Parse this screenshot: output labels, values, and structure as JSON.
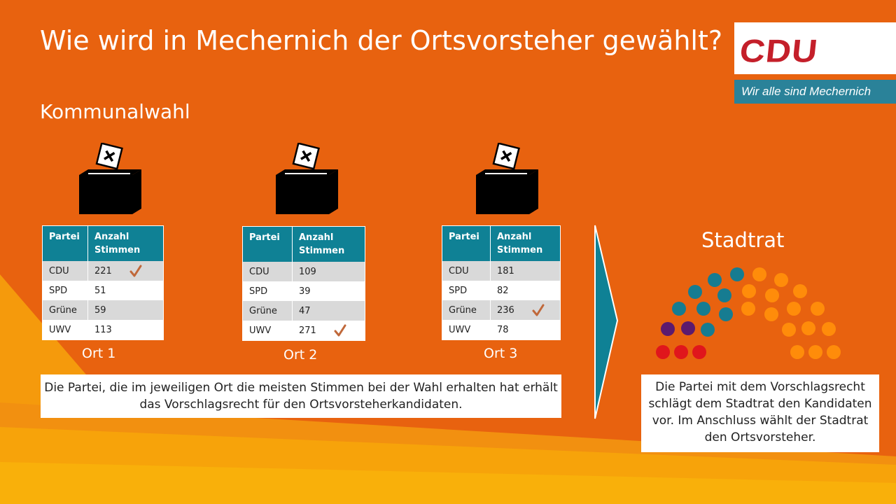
{
  "slide": {
    "title": "Wie wird in Mechernich der Ortsvorsteher gewählt?",
    "subtitle": "Kommunalwahl"
  },
  "logo": {
    "brand": "CDU",
    "tagline": "Wir alle sind Mechernich",
    "colors": {
      "brand": "#c41f2a",
      "tagline_bg": "#2a8299"
    }
  },
  "tables": [
    {
      "place": "Ort 1",
      "headers": [
        "Partei",
        "Anzahl Stimmen"
      ],
      "rows": [
        {
          "party": "CDU",
          "votes": "221"
        },
        {
          "party": "SPD",
          "votes": "51"
        },
        {
          "party": "Grüne",
          "votes": "59"
        },
        {
          "party": "UWV",
          "votes": "113"
        }
      ],
      "winner_row": 0
    },
    {
      "place": "Ort 2",
      "headers": [
        "Partei",
        "Anzahl Stimmen"
      ],
      "rows": [
        {
          "party": "CDU",
          "votes": "109"
        },
        {
          "party": "SPD",
          "votes": "39"
        },
        {
          "party": "Grüne",
          "votes": "47"
        },
        {
          "party": "UWV",
          "votes": "271"
        }
      ],
      "winner_row": 3
    },
    {
      "place": "Ort 3",
      "headers": [
        "Partei",
        "Anzahl Stimmen"
      ],
      "rows": [
        {
          "party": "CDU",
          "votes": "181"
        },
        {
          "party": "SPD",
          "votes": "82"
        },
        {
          "party": "Grüne",
          "votes": "236"
        },
        {
          "party": "UWV",
          "votes": "78"
        }
      ],
      "winner_row": 2
    }
  ],
  "note_left": "Die Partei, die im jeweiligen Ort die meisten Stimmen bei der Wahl erhalten hat erhält das Vorschlagsrecht für den Ortsvorsteherkandidaten.",
  "stadtrat": {
    "title": "Stadtrat",
    "note": "Die Partei mit dem Vorschlagsrecht schlägt dem Stadtrat den Kandidaten vor. Im Anschluss wählt der Stadtrat den Ortsvorsteher.",
    "seat_colors": {
      "red": "#e0161c",
      "purple": "#5c1a6e",
      "teal": "#167c91",
      "orange": "#ff8c0a"
    }
  },
  "colors": {
    "background": "#e8620f",
    "table_header": "#0f8195",
    "check": "#c0683a"
  }
}
